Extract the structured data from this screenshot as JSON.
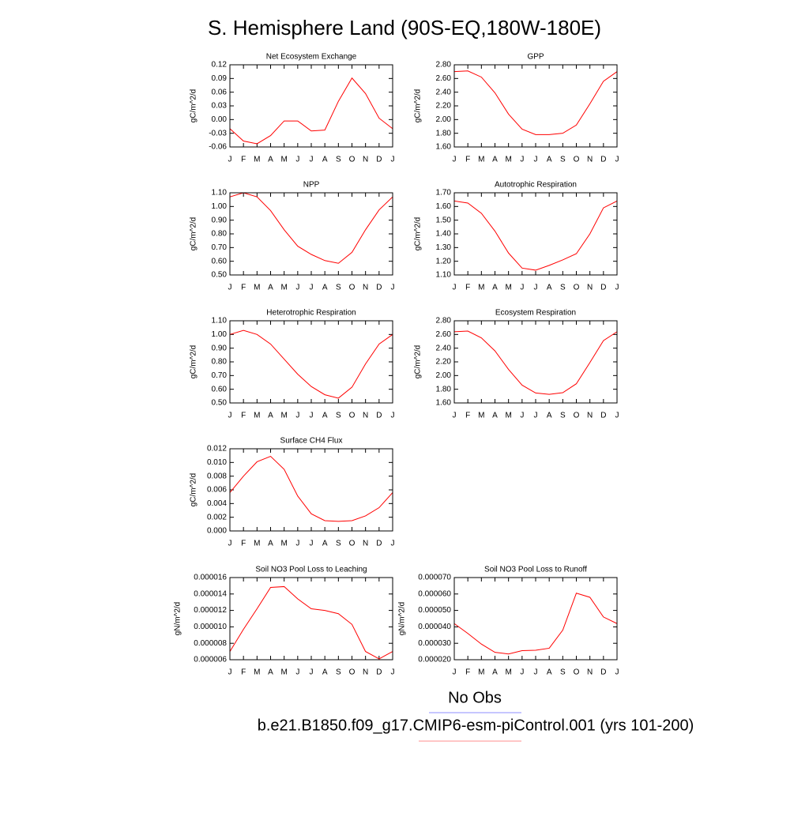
{
  "title": "S. Hemisphere Land (90S-EQ,180W-180E)",
  "legend": [
    {
      "name": "No Obs",
      "color": "#8c8cff"
    },
    {
      "name": "b.e21.B1850.f09_g17.CMIP6-esm-piControl.001 (yrs 101-200)",
      "color": "#ff8c8c"
    }
  ],
  "chart_data": [
    {
      "type": "line",
      "title": "Net Ecosystem Exchange",
      "ylabel": "gC/m^2/d",
      "color": "#ff0000",
      "categories": [
        "J",
        "F",
        "M",
        "A",
        "M",
        "J",
        "J",
        "A",
        "S",
        "O",
        "N",
        "D",
        "J"
      ],
      "values": [
        -0.02,
        -0.047,
        -0.053,
        -0.035,
        -0.003,
        -0.003,
        -0.025,
        -0.023,
        0.04,
        0.091,
        0.057,
        0.003,
        -0.02
      ],
      "ylim": [
        -0.06,
        0.12
      ],
      "yticks": [
        -0.06,
        -0.03,
        {
          "value": 0,
          "label": "0.00"
        },
        0.03,
        0.06,
        0.09,
        0.12
      ]
    },
    {
      "type": "line",
      "title": "GPP",
      "ylabel": "gC/m^2/d",
      "color": "#ff0000",
      "categories": [
        "J",
        "F",
        "M",
        "A",
        "M",
        "J",
        "J",
        "A",
        "S",
        "O",
        "N",
        "D",
        "J"
      ],
      "values": [
        2.7,
        2.71,
        2.62,
        2.39,
        2.08,
        1.86,
        1.78,
        1.78,
        1.8,
        1.92,
        2.23,
        2.56,
        2.7
      ],
      "ylim": [
        1.6,
        2.8
      ],
      "yticks": [
        {
          "value": 1.6,
          "label": "1.60"
        },
        {
          "value": 1.8,
          "label": "1.80"
        },
        {
          "value": 2.0,
          "label": "2.00"
        },
        {
          "value": 2.2,
          "label": "2.20"
        },
        {
          "value": 2.4,
          "label": "2.40"
        },
        {
          "value": 2.6,
          "label": "2.60"
        },
        {
          "value": 2.8,
          "label": "2.80"
        }
      ]
    },
    {
      "type": "line",
      "title": "NPP",
      "ylabel": "gC/m^2/d",
      "color": "#ff0000",
      "categories": [
        "J",
        "F",
        "M",
        "A",
        "M",
        "J",
        "J",
        "A",
        "S",
        "O",
        "N",
        "D",
        "J"
      ],
      "values": [
        1.07,
        1.1,
        1.07,
        0.97,
        0.83,
        0.71,
        0.65,
        0.605,
        0.585,
        0.665,
        0.83,
        0.975,
        1.07
      ],
      "ylim": [
        0.5,
        1.1
      ],
      "yticks": [
        {
          "value": 0.5,
          "label": "0.50"
        },
        {
          "value": 0.6,
          "label": "0.60"
        },
        {
          "value": 0.7,
          "label": "0.70"
        },
        {
          "value": 0.8,
          "label": "0.80"
        },
        {
          "value": 0.9,
          "label": "0.90"
        },
        {
          "value": 1.0,
          "label": "1.00"
        },
        {
          "value": 1.1,
          "label": "1.10"
        }
      ]
    },
    {
      "type": "line",
      "title": "Autotrophic Respiration",
      "ylabel": "gC/m^2/d",
      "color": "#ff0000",
      "categories": [
        "J",
        "F",
        "M",
        "A",
        "M",
        "J",
        "J",
        "A",
        "S",
        "O",
        "N",
        "D",
        "J"
      ],
      "values": [
        1.64,
        1.625,
        1.55,
        1.42,
        1.26,
        1.15,
        1.135,
        1.17,
        1.21,
        1.255,
        1.4,
        1.59,
        1.64
      ],
      "ylim": [
        1.1,
        1.7
      ],
      "yticks": [
        {
          "value": 1.1,
          "label": "1.10"
        },
        {
          "value": 1.2,
          "label": "1.20"
        },
        {
          "value": 1.3,
          "label": "1.30"
        },
        {
          "value": 1.4,
          "label": "1.40"
        },
        {
          "value": 1.5,
          "label": "1.50"
        },
        {
          "value": 1.6,
          "label": "1.60"
        },
        {
          "value": 1.7,
          "label": "1.70"
        }
      ]
    },
    {
      "type": "line",
      "title": "Heterotrophic Respiration",
      "ylabel": "gC/m^2/d",
      "color": "#ff0000",
      "categories": [
        "J",
        "F",
        "M",
        "A",
        "M",
        "J",
        "J",
        "A",
        "S",
        "O",
        "N",
        "D",
        "J"
      ],
      "values": [
        1.0,
        1.03,
        1.0,
        0.93,
        0.82,
        0.71,
        0.62,
        0.56,
        0.535,
        0.615,
        0.785,
        0.93,
        1.0
      ],
      "ylim": [
        0.5,
        1.1
      ],
      "yticks": [
        {
          "value": 0.5,
          "label": "0.50"
        },
        {
          "value": 0.6,
          "label": "0.60"
        },
        {
          "value": 0.7,
          "label": "0.70"
        },
        {
          "value": 0.8,
          "label": "0.80"
        },
        {
          "value": 0.9,
          "label": "0.90"
        },
        {
          "value": 1.0,
          "label": "1.00"
        },
        {
          "value": 1.1,
          "label": "1.10"
        }
      ]
    },
    {
      "type": "line",
      "title": "Ecosystem Respiration",
      "ylabel": "gC/m^2/d",
      "color": "#ff0000",
      "categories": [
        "J",
        "F",
        "M",
        "A",
        "M",
        "J",
        "J",
        "A",
        "S",
        "O",
        "N",
        "D",
        "J"
      ],
      "values": [
        2.64,
        2.65,
        2.55,
        2.36,
        2.09,
        1.86,
        1.745,
        1.725,
        1.75,
        1.88,
        2.19,
        2.51,
        2.64
      ],
      "ylim": [
        1.6,
        2.8
      ],
      "yticks": [
        {
          "value": 1.6,
          "label": "1.60"
        },
        {
          "value": 1.8,
          "label": "1.80"
        },
        {
          "value": 2.0,
          "label": "2.00"
        },
        {
          "value": 2.2,
          "label": "2.20"
        },
        {
          "value": 2.4,
          "label": "2.40"
        },
        {
          "value": 2.6,
          "label": "2.60"
        },
        {
          "value": 2.8,
          "label": "2.80"
        }
      ]
    },
    {
      "type": "line",
      "title": "Surface CH4 Flux",
      "ylabel": "gC/m^2/d",
      "color": "#ff0000",
      "categories": [
        "J",
        "F",
        "M",
        "A",
        "M",
        "J",
        "J",
        "A",
        "S",
        "O",
        "N",
        "D",
        "J"
      ],
      "values": [
        0.0056,
        0.008,
        0.0101,
        0.0109,
        0.009,
        0.0051,
        0.0025,
        0.0015,
        0.0014,
        0.0015,
        0.0022,
        0.0034,
        0.0056
      ],
      "ylim": [
        0,
        0.012
      ],
      "yticks": [
        {
          "value": 0,
          "label": "0.000"
        },
        0.002,
        0.004,
        0.006,
        0.008,
        {
          "value": 0.01,
          "label": "0.010"
        },
        0.012
      ]
    },
    {
      "type": "line",
      "title": "Soil NO3 Pool Loss to Leaching",
      "ylabel": "gN/m^2/d",
      "color": "#ff0000",
      "categories": [
        "J",
        "F",
        "M",
        "A",
        "M",
        "J",
        "J",
        "A",
        "S",
        "O",
        "N",
        "D",
        "J"
      ],
      "values": [
        7e-06,
        9.7e-06,
        1.22e-05,
        1.48e-05,
        1.49e-05,
        1.34e-05,
        1.22e-05,
        1.2e-05,
        1.16e-05,
        1.03e-05,
        7e-06,
        6.1e-06,
        7e-06
      ],
      "ylim": [
        6e-06,
        1.6e-05
      ],
      "yticks": [
        6e-06,
        {
          "value": 8e-06,
          "label": "0.000008"
        },
        {
          "value": 1e-05,
          "label": "0.000010"
        },
        1.2e-05,
        1.4e-05,
        1.6e-05
      ]
    },
    {
      "type": "line",
      "title": "Soil NO3 Pool Loss to Runoff",
      "ylabel": "gN/m^2/d",
      "color": "#ff0000",
      "categories": [
        "J",
        "F",
        "M",
        "A",
        "M",
        "J",
        "J",
        "A",
        "S",
        "O",
        "N",
        "D",
        "J"
      ],
      "values": [
        4.2e-05,
        3.6e-05,
        2.95e-05,
        2.45e-05,
        2.35e-05,
        2.55e-05,
        2.58e-05,
        2.7e-05,
        3.8e-05,
        6.05e-05,
        5.8e-05,
        4.6e-05,
        4.2e-05
      ],
      "ylim": [
        2e-05,
        7e-05
      ],
      "yticks": [
        {
          "value": 2e-05,
          "label": "0.000020"
        },
        {
          "value": 3e-05,
          "label": "0.000030"
        },
        {
          "value": 4e-05,
          "label": "0.000040"
        },
        {
          "value": 5e-05,
          "label": "0.000050"
        },
        {
          "value": 6e-05,
          "label": "0.000060"
        },
        {
          "value": 7e-05,
          "label": "0.000070"
        }
      ]
    }
  ]
}
